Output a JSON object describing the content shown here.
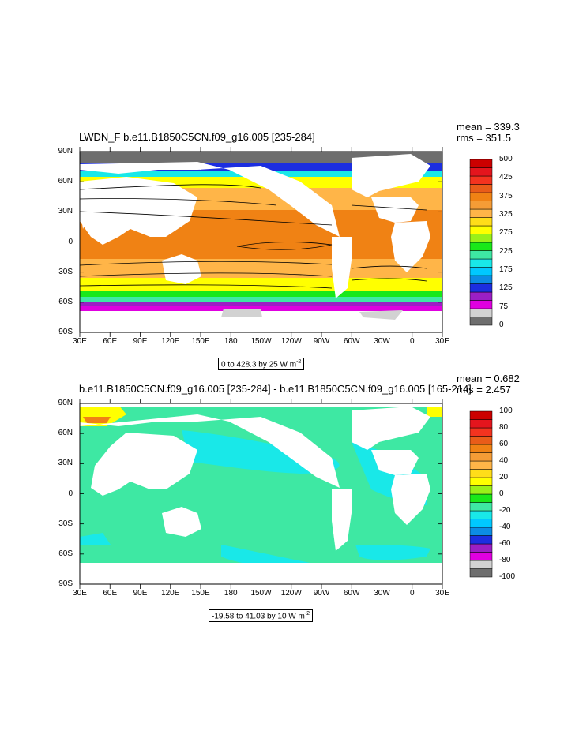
{
  "panel1": {
    "title": "LWDN_F b.e11.B1850C5CN.f09_g16.005 [235-284]",
    "mean": "mean = 339.3",
    "rms": "rms = 351.5",
    "info": "0 to 428.3 by 25  W m",
    "info_sup": "-2",
    "lat_labels": [
      "90N",
      "60N",
      "30N",
      "0",
      "30S",
      "60S",
      "90S"
    ],
    "lon_labels": [
      "30E",
      "60E",
      "90E",
      "120E",
      "150E",
      "180",
      "150W",
      "120W",
      "90W",
      "60W",
      "30W",
      "0",
      "30E"
    ],
    "colorbar_labels": [
      "500",
      "425",
      "375",
      "325",
      "275",
      "225",
      "175",
      "125",
      "75",
      "0"
    ],
    "colorbar_colors": [
      "#6e6e6e",
      "#d2d2d2",
      "#e000e0",
      "#9b1fc4",
      "#1c2ee0",
      "#0c8ce4",
      "#00c8ff",
      "#19e8e8",
      "#3ee8a3",
      "#19e819",
      "#99f019",
      "#ffff00",
      "#ffdd19",
      "#ffb548",
      "#f59c36",
      "#f08214",
      "#e95c19",
      "#f4331f",
      "#e4151d",
      "#cc0000"
    ]
  },
  "panel2": {
    "title": "b.e11.B1850C5CN.f09_g16.005 [235-284] - b.e11.B1850C5CN.f09_g16.005 [165-214]",
    "mean": "mean = 0.682",
    "rms": "rms = 2.457",
    "info": "-19.58 to 41.03 by 10  W m",
    "info_sup": "-2",
    "lat_labels": [
      "90N",
      "60N",
      "30N",
      "0",
      "30S",
      "60S",
      "90S"
    ],
    "lon_labels": [
      "30E",
      "60E",
      "90E",
      "120E",
      "150E",
      "180",
      "150W",
      "120W",
      "90W",
      "60W",
      "30W",
      "0",
      "30E"
    ],
    "colorbar_labels": [
      "100",
      "80",
      "60",
      "40",
      "20",
      "0",
      "-20",
      "-40",
      "-60",
      "-80",
      "-100"
    ],
    "colorbar_colors": [
      "#6e6e6e",
      "#d2d2d2",
      "#e000e0",
      "#9b1fc4",
      "#1c2ee0",
      "#0c8ce4",
      "#00c8ff",
      "#19e8e8",
      "#3ee8a3",
      "#19e819",
      "#99f019",
      "#ffff00",
      "#ffdd19",
      "#ffb548",
      "#f59c36",
      "#f08214",
      "#e95c19",
      "#f4331f",
      "#e4151d",
      "#cc0000"
    ]
  }
}
